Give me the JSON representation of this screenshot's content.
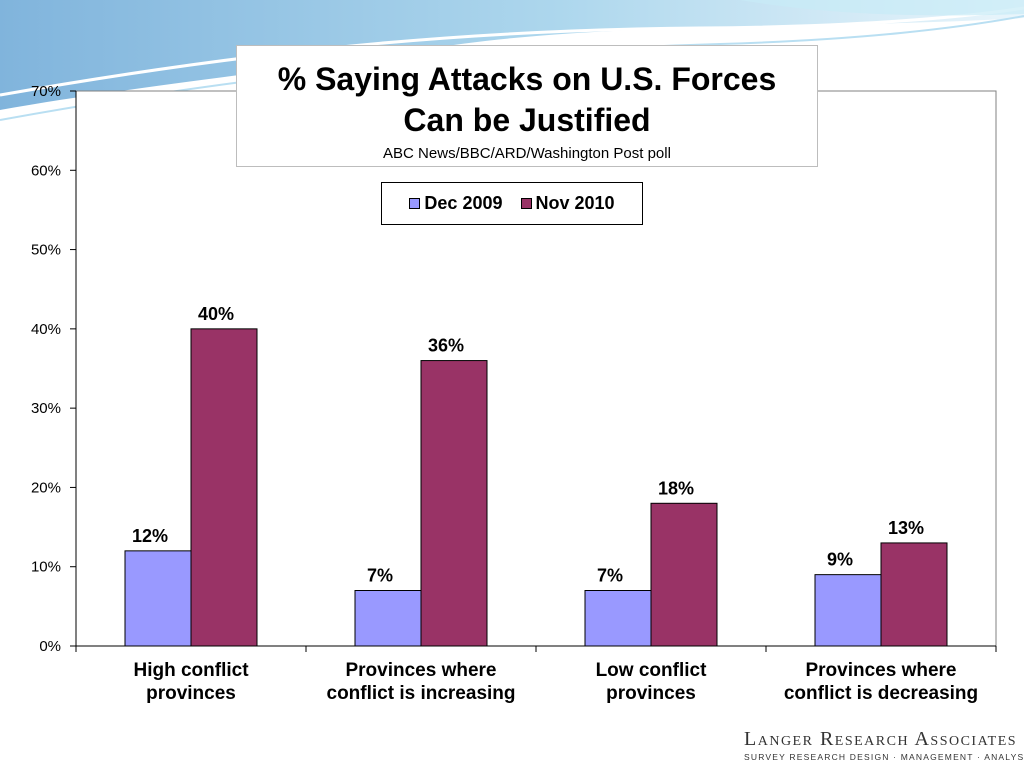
{
  "chart_data": {
    "type": "bar",
    "title": "% Saying Attacks on U.S. Forces Can be Justified",
    "title_lines": [
      "% Saying Attacks on U.S. Forces",
      "Can be Justified"
    ],
    "subtitle": "ABC News/BBC/ARD/Washington Post poll",
    "categories": [
      [
        "High conflict",
        "provinces"
      ],
      [
        "Provinces where",
        "conflict is increasing"
      ],
      [
        "Low conflict",
        "provinces"
      ],
      [
        "Provinces where",
        "conflict is decreasing"
      ]
    ],
    "series": [
      {
        "name": "Dec 2009",
        "values": [
          12,
          7,
          7,
          9
        ],
        "color": "#9999ff",
        "labels": [
          "12%",
          "7%",
          "7%",
          "9%"
        ]
      },
      {
        "name": "Nov 2010",
        "values": [
          40,
          36,
          18,
          13
        ],
        "color": "#993366",
        "labels": [
          "40%",
          "36%",
          "18%",
          "13%"
        ]
      }
    ],
    "ylim": [
      0,
      70
    ],
    "yticks": [
      0,
      10,
      20,
      30,
      40,
      50,
      60,
      70
    ],
    "ytick_labels": [
      "0%",
      "10%",
      "20%",
      "30%",
      "40%",
      "50%",
      "60%",
      "70%"
    ],
    "xlabel": "",
    "ylabel": "",
    "grid": false,
    "legend_position": "top-center"
  },
  "logo": {
    "name": "Langer Research Associates",
    "tagline": "SURVEY RESEARCH DESIGN · MANAGEMENT · ANALYSIS"
  }
}
